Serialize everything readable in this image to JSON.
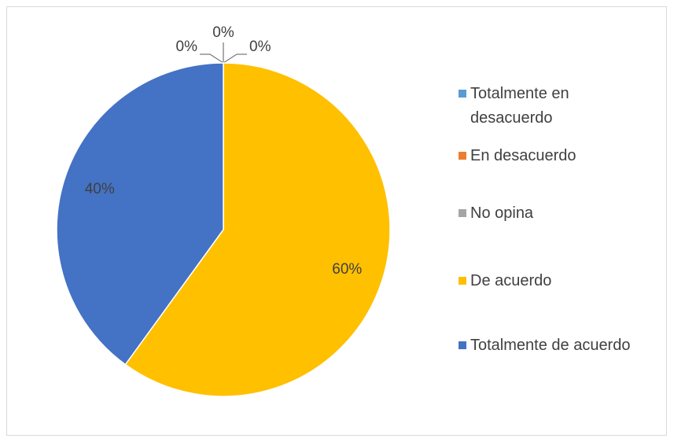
{
  "chart_data": {
    "type": "pie",
    "categories": [
      "Totalmente en desacuerdo",
      "En desacuerdo",
      "No opina",
      "De acuerdo",
      "Totalmente de acuerdo"
    ],
    "values": [
      0,
      0,
      0,
      60,
      40
    ],
    "value_labels": [
      "0%",
      "0%",
      "0%",
      "60%",
      "40%"
    ],
    "colors": [
      "#5b9bd5",
      "#ed7d31",
      "#a5a5a5",
      "#ffc000",
      "#4472c4"
    ],
    "legend": "right"
  }
}
